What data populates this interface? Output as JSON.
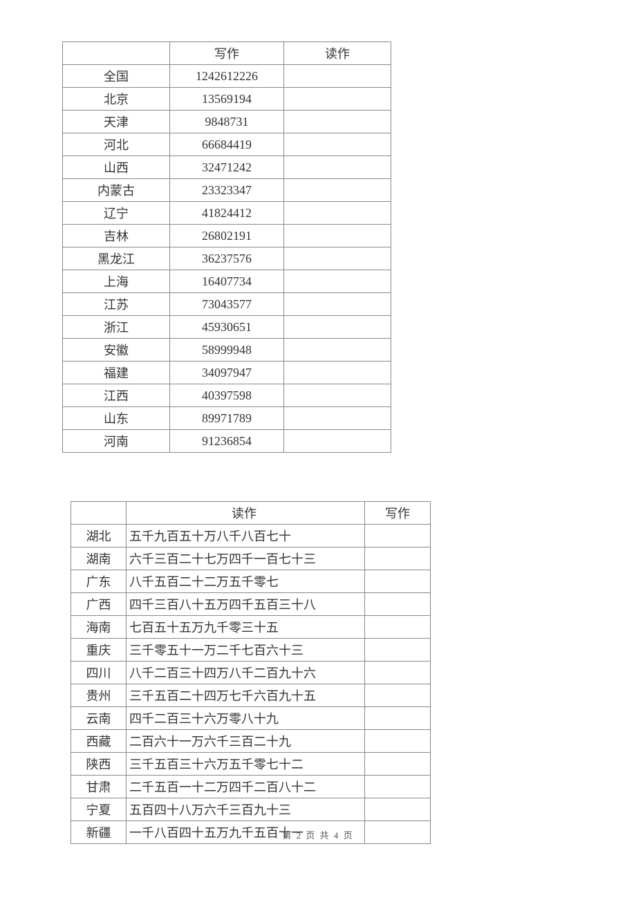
{
  "table1": {
    "headers": {
      "col1": "",
      "col2": "写作",
      "col3": "读作"
    },
    "rows": [
      {
        "label": "全国",
        "value": "1242612226",
        "read": ""
      },
      {
        "label": "北京",
        "value": "13569194",
        "read": ""
      },
      {
        "label": "天津",
        "value": "9848731",
        "read": ""
      },
      {
        "label": "河北",
        "value": "66684419",
        "read": ""
      },
      {
        "label": "山西",
        "value": "32471242",
        "read": ""
      },
      {
        "label": "内蒙古",
        "value": "23323347",
        "read": ""
      },
      {
        "label": "辽宁",
        "value": "41824412",
        "read": ""
      },
      {
        "label": "吉林",
        "value": "26802191",
        "read": ""
      },
      {
        "label": "黑龙江",
        "value": "36237576",
        "read": ""
      },
      {
        "label": "上海",
        "value": "16407734",
        "read": ""
      },
      {
        "label": "江苏",
        "value": "73043577",
        "read": ""
      },
      {
        "label": "浙江",
        "value": "45930651",
        "read": ""
      },
      {
        "label": "安徽",
        "value": "58999948",
        "read": ""
      },
      {
        "label": "福建",
        "value": "34097947",
        "read": ""
      },
      {
        "label": "江西",
        "value": "40397598",
        "read": ""
      },
      {
        "label": "山东",
        "value": "89971789",
        "read": ""
      },
      {
        "label": "河南",
        "value": "91236854",
        "read": ""
      }
    ]
  },
  "table2": {
    "headers": {
      "col1": "",
      "col2": "读作",
      "col3": "写作"
    },
    "rows": [
      {
        "label": "湖北",
        "read": "五千九百五十万八千八百七十",
        "value": ""
      },
      {
        "label": "湖南",
        "read": "六千三百二十七万四千一百七十三",
        "value": ""
      },
      {
        "label": "广东",
        "read": "八千五百二十二万五千零七",
        "value": ""
      },
      {
        "label": "广西",
        "read": "四千三百八十五万四千五百三十八",
        "value": ""
      },
      {
        "label": "海南",
        "read": "七百五十五万九千零三十五",
        "value": ""
      },
      {
        "label": "重庆",
        "read": "三千零五十一万二千七百六十三",
        "value": ""
      },
      {
        "label": "四川",
        "read": "八千二百三十四万八千二百九十六",
        "value": ""
      },
      {
        "label": "贵州",
        "read": "三千五百二十四万七千六百九十五",
        "value": ""
      },
      {
        "label": "云南",
        "read": "四千二百三十六万零八十九",
        "value": ""
      },
      {
        "label": "西藏",
        "read": "二百六十一万六千三百二十九",
        "value": ""
      },
      {
        "label": "陕西",
        "read": "三千五百三十六万五千零七十二",
        "value": ""
      },
      {
        "label": "甘肃",
        "read": "二千五百一十二万四千二百八十二",
        "value": ""
      },
      {
        "label": "宁夏",
        "read": "五百四十八万六千三百九十三",
        "value": ""
      },
      {
        "label": "新疆",
        "read": "一千八百四十五万九千五百十一",
        "value": ""
      }
    ]
  },
  "footer": "第 2 页 共 4 页",
  "colors": {
    "background": "#ffffff",
    "text": "#333333",
    "border": "#888888",
    "footer_text": "#555555"
  }
}
